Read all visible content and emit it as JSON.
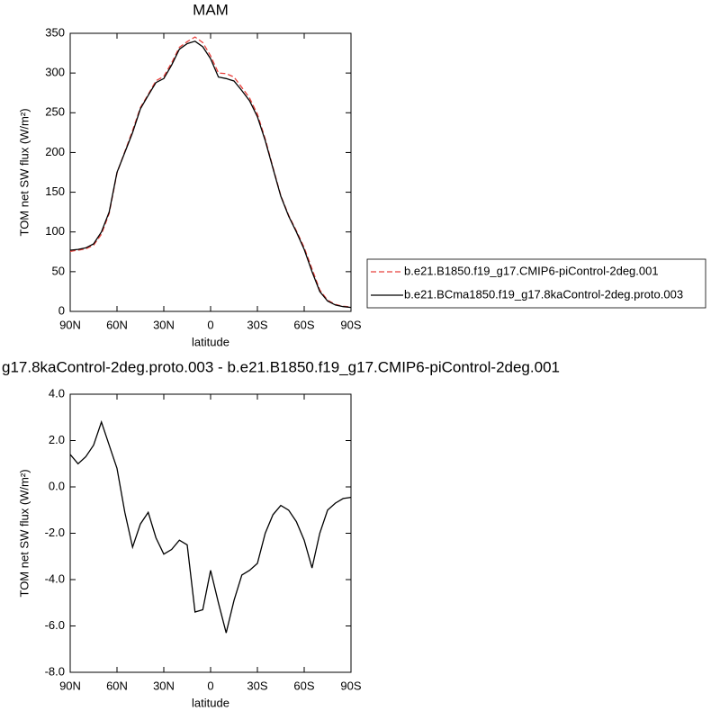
{
  "chart_data": [
    {
      "type": "line",
      "title": "MAM",
      "xlabel": "latitude",
      "ylabel": "TOM net SW flux (W/m²)",
      "x": [
        90,
        85,
        80,
        75,
        70,
        65,
        60,
        55,
        50,
        45,
        40,
        35,
        30,
        25,
        20,
        15,
        10,
        5,
        0,
        -5,
        -10,
        -15,
        -20,
        -25,
        -30,
        -35,
        -40,
        -45,
        -50,
        -55,
        -60,
        -65,
        -70,
        -75,
        -80,
        -85,
        -90
      ],
      "xlim": [
        90,
        -90
      ],
      "xticks": [
        {
          "value": 90,
          "label": "90N"
        },
        {
          "value": 60,
          "label": "60N"
        },
        {
          "value": 30,
          "label": "30N"
        },
        0,
        {
          "value": -30,
          "label": "30S"
        },
        {
          "value": -60,
          "label": "60S"
        },
        {
          "value": -90,
          "label": "90S"
        }
      ],
      "ylim": [
        0,
        350
      ],
      "yticks": [
        0,
        50,
        100,
        150,
        200,
        250,
        300,
        350
      ],
      "legend": "right",
      "series": [
        {
          "name": "b.e21.B1850.f19_g17.CMIP6-piControl-2deg.001",
          "color": "#e8413c",
          "dash": true,
          "values": [
            75.6,
            77,
            78.7,
            83.2,
            97.2,
            123.2,
            174.2,
            201.1,
            227.6,
            256.6,
            273.1,
            290.2,
            295.9,
            312.7,
            332.3,
            339.5,
            345.4,
            338.3,
            321.6,
            300,
            299.3,
            294.9,
            281.8,
            268.6,
            248.3,
            217,
            181.2,
            145.8,
            121,
            101.5,
            80.3,
            53.5,
            27,
            14,
            8.7,
            6.5,
            5.5
          ]
        },
        {
          "name": "b.e21.BCma1850.f19_g17.8kaControl-2deg.proto.003",
          "color": "#000000",
          "dash": false,
          "values": [
            77,
            78,
            80,
            85,
            100,
            125,
            175,
            200,
            225,
            255,
            272,
            288,
            293,
            310,
            330,
            337,
            340,
            333,
            318,
            295,
            293,
            290,
            278,
            265,
            245,
            215,
            180,
            145,
            120,
            100,
            78,
            50,
            25,
            13,
            8,
            6,
            5
          ]
        }
      ]
    },
    {
      "type": "line",
      "title": "g17.8kaControl-2deg.proto.003 - b.e21.B1850.f19_g17.CMIP6-piControl-2deg.001",
      "xlabel": "latitude",
      "ylabel": "TOM net SW flux (W/m²)",
      "x": [
        90,
        85,
        80,
        75,
        70,
        65,
        60,
        55,
        50,
        45,
        40,
        35,
        30,
        25,
        20,
        15,
        10,
        5,
        0,
        -5,
        -10,
        -15,
        -20,
        -25,
        -30,
        -35,
        -40,
        -45,
        -50,
        -55,
        -60,
        -65,
        -70,
        -75,
        -80,
        -85,
        -90
      ],
      "xlim": [
        90,
        -90
      ],
      "xticks": [
        {
          "value": 90,
          "label": "90N"
        },
        {
          "value": 60,
          "label": "60N"
        },
        {
          "value": 30,
          "label": "30N"
        },
        0,
        {
          "value": -30,
          "label": "30S"
        },
        {
          "value": -60,
          "label": "60S"
        },
        {
          "value": -90,
          "label": "90S"
        }
      ],
      "ylim": [
        -8,
        4
      ],
      "yticks": [
        {
          "value": -8,
          "label": "-8.0"
        },
        {
          "value": -6,
          "label": "-6.0"
        },
        {
          "value": -4,
          "label": "-4.0"
        },
        {
          "value": -2,
          "label": "-2.0"
        },
        {
          "value": 0,
          "label": "0.0"
        },
        {
          "value": 2,
          "label": "2.0"
        },
        {
          "value": 4,
          "label": "4.0"
        }
      ],
      "series": [
        {
          "color": "#000000",
          "dash": false,
          "values": [
            1.4,
            1.0,
            1.3,
            1.8,
            2.8,
            1.8,
            0.8,
            -1.1,
            -2.6,
            -1.6,
            -1.1,
            -2.2,
            -2.9,
            -2.7,
            -2.3,
            -2.5,
            -5.4,
            -5.3,
            -3.6,
            -5.0,
            -6.3,
            -4.9,
            -3.8,
            -3.6,
            -3.3,
            -2.0,
            -1.2,
            -0.8,
            -1.0,
            -1.5,
            -2.3,
            -3.5,
            -2.0,
            -1.0,
            -0.7,
            -0.5,
            -0.45
          ]
        }
      ]
    }
  ]
}
